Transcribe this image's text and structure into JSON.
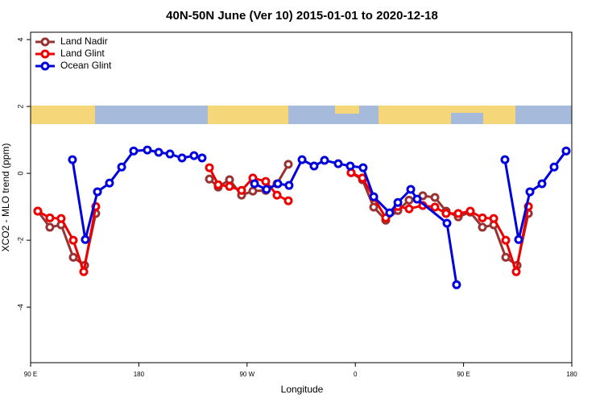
{
  "chart_data": {
    "type": "line",
    "title": "40N-50N June (Ver 10)   2015-01-01 to 2020-12-18",
    "xlabel": "Longitude",
    "ylabel": "XCO2 - MLO trend (ppm)",
    "xlim": [
      90,
      540
    ],
    "ylim": [
      -5.66,
      4.22
    ],
    "xticks": [
      {
        "value": 90,
        "label": "90 E"
      },
      180,
      {
        "value": 270,
        "label": "90 W"
      },
      {
        "value": 360,
        "label": "0"
      },
      {
        "value": 450,
        "label": "90 E"
      },
      {
        "value": 540,
        "label": "180"
      }
    ],
    "yticks": [
      -4,
      -2,
      0,
      2,
      4
    ],
    "legend": "top-left",
    "series": [
      {
        "name": "Land Nadir",
        "color": "#993333",
        "x": [
          96,
          106,
          115.4,
          125.5,
          134.9,
          144.2,
          null,
          238.7,
          246,
          255.4,
          265.4,
          274.8,
          285.5,
          294.9,
          304.3,
          null,
          356.5,
          365.9,
          375.3,
          385.3,
          395.4,
          404.7,
          416.1,
          426.2,
          435.5,
          445.6,
          455.6,
          465.7,
          475.1,
          485.1,
          494.5,
          503.9
        ],
        "values": [
          -1.13,
          -1.61,
          -1.54,
          -2.51,
          -2.75,
          -1.2,
          null,
          -0.17,
          -0.41,
          -0.19,
          -0.65,
          -0.53,
          -0.51,
          -0.31,
          0.27,
          null,
          0.02,
          -0.19,
          -1.01,
          -1.4,
          -1.11,
          -0.8,
          -0.67,
          -0.72,
          -1.13,
          -1.3,
          -1.16,
          -1.61,
          -1.54,
          -2.51,
          -2.75,
          -1.2
        ]
      },
      {
        "name": "Land Glint",
        "color": "#ee0000",
        "x": [
          96,
          106,
          115.4,
          125.5,
          134.2,
          144.2,
          null,
          238.7,
          246,
          255.4,
          265.4,
          274.8,
          285.5,
          294.9,
          304.3,
          null,
          356.5,
          365.9,
          375.3,
          385.3,
          395.4,
          404.7,
          416.1,
          426.2,
          435.5,
          445.6,
          455.6,
          465.7,
          475.1,
          485.1,
          493.8,
          503.9
        ],
        "values": [
          -1.13,
          -1.33,
          -1.35,
          -2.0,
          -2.94,
          -0.99,
          null,
          0.17,
          -0.34,
          -0.39,
          -0.51,
          -0.14,
          -0.24,
          -0.65,
          -0.82,
          null,
          0.02,
          -0.14,
          -0.72,
          -1.33,
          -0.99,
          -1.06,
          -0.96,
          -1.01,
          -1.2,
          -1.2,
          -1.13,
          -1.33,
          -1.35,
          -2.0,
          -2.94,
          -0.99
        ]
      },
      {
        "name": "Ocean Glint",
        "color": "#0000dd",
        "x": [
          124.8,
          135.5,
          145.6,
          155.6,
          165.7,
          175.7,
          187.1,
          196.5,
          205.9,
          215.9,
          225.9,
          232.6,
          null,
          276.2,
          286.2,
          295.6,
          304.9,
          315.7,
          325.7,
          334.4,
          345.8,
          355.8,
          366.5,
          375.3,
          388.6,
          395.4,
          406.1,
          411.4,
          436.2,
          444.2,
          null,
          484.4,
          495.8,
          505.2,
          515.2,
          525.3,
          535.3
        ],
        "values": [
          0.41,
          -1.98,
          -0.55,
          -0.29,
          0.19,
          0.67,
          0.7,
          0.63,
          0.58,
          0.46,
          0.53,
          0.46,
          null,
          -0.31,
          -0.48,
          -0.31,
          -0.36,
          0.41,
          0.22,
          0.39,
          0.29,
          0.22,
          0.17,
          -0.7,
          -1.18,
          -0.87,
          -0.48,
          -0.77,
          -1.49,
          -3.33,
          null,
          0.41,
          -1.98,
          -0.55,
          -0.31,
          0.19,
          0.67
        ]
      }
    ]
  }
}
